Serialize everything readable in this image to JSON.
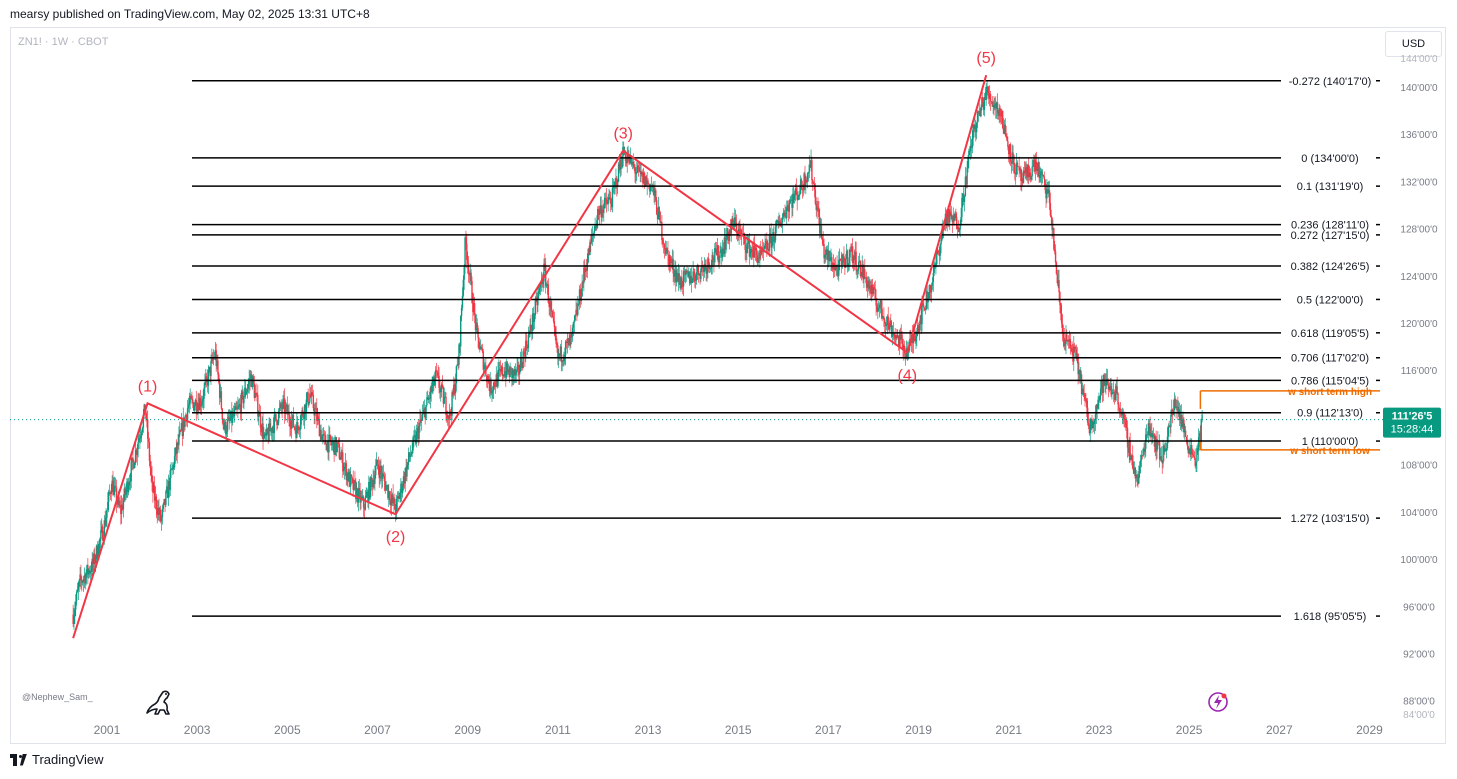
{
  "header": {
    "text": "mearsy published on TradingView.com, May 02, 2025 13:31 UTC+8"
  },
  "symbol": "ZN1! · 1W · CBOT",
  "currency_button": "USD",
  "watermark_user": "@Nephew_Sam_",
  "brand": "TradingView",
  "icons": {
    "logo": "tradingview-logo-icon",
    "mascot": "dino-icon",
    "replay": "lightning-icon"
  },
  "colors": {
    "wave": "#f23645",
    "fib": "#000000",
    "orange": "#ef6c00",
    "up": "#089981",
    "down": "#f23645",
    "price_badge": "#089981"
  },
  "chart_data": {
    "type": "candlestick",
    "y_axis_ticks": [
      "88'00'0",
      "92'00'0",
      "96'00'0",
      "100'00'0",
      "104'00'0",
      "108'00'0",
      "112'00'0",
      "116'00'0",
      "120'00'0",
      "124'00'0",
      "128'00'0",
      "132'00'0",
      "136'00'0",
      "140'00'0"
    ],
    "y_axis_ticks_cut": [
      "144'00'0",
      "84'00'0"
    ],
    "x_axis_ticks": [
      "2001",
      "2003",
      "2005",
      "2007",
      "2009",
      "2011",
      "2013",
      "2015",
      "2017",
      "2019",
      "2021",
      "2023",
      "2025",
      "2027",
      "2029"
    ],
    "ylim": [
      84.5,
      145
    ],
    "xlim": [
      1998.85,
      2029.3
    ],
    "fib_levels": [
      {
        "ratio": "-0.272",
        "label": "-0.272 (140'17'0)",
        "price": 140.53
      },
      {
        "ratio": "0",
        "label": "0 (134'00'0)",
        "price": 134.0
      },
      {
        "ratio": "0.1",
        "label": "0.1 (131'19'0)",
        "price": 131.6
      },
      {
        "ratio": "0.236",
        "label": "0.236 (128'11'0)",
        "price": 128.34
      },
      {
        "ratio": "0.272",
        "label": "0.272 (127'15'0)",
        "price": 127.47
      },
      {
        "ratio": "0.382",
        "label": "0.382 (124'26'5)",
        "price": 124.83
      },
      {
        "ratio": "0.5",
        "label": "0.5 (122'00'0)",
        "price": 122.0
      },
      {
        "ratio": "0.618",
        "label": "0.618 (119'05'5)",
        "price": 119.17
      },
      {
        "ratio": "0.706",
        "label": "0.706 (117'02'0)",
        "price": 117.06
      },
      {
        "ratio": "0.786",
        "label": "0.786 (115'04'5)",
        "price": 115.14
      },
      {
        "ratio": "0.9",
        "label": "0.9 (112'13'0)",
        "price": 112.4
      },
      {
        "ratio": "1",
        "label": "1 (110'00'0)",
        "price": 110.0
      },
      {
        "ratio": "1.272",
        "label": "1.272 (103'15'0)",
        "price": 103.47
      },
      {
        "ratio": "1.618",
        "label": "1.618 (95'05'5)",
        "price": 95.17
      }
    ],
    "wave_points": [
      {
        "label": "",
        "x": 2000.25,
        "y": 93.3
      },
      {
        "label": "(1)",
        "x": 2001.9,
        "y": 113.2
      },
      {
        "label": "(2)",
        "x": 2007.4,
        "y": 103.8
      },
      {
        "label": "(3)",
        "x": 2012.45,
        "y": 134.6
      },
      {
        "label": "(4)",
        "x": 2018.75,
        "y": 117.5
      },
      {
        "label": "(5)",
        "x": 2020.5,
        "y": 141.0
      }
    ],
    "annotations": [
      {
        "text": "w short term high",
        "x_start": 2025.25,
        "x_end": 2028.4,
        "price": 114.25
      },
      {
        "text": "w short term low",
        "x_start": 2025.25,
        "x_end": 2028.4,
        "price": 109.25
      }
    ],
    "last_price": {
      "value": "111'26'5",
      "countdown": "15:28:44",
      "price": 111.82
    },
    "price_path": [
      [
        2000.25,
        95.3
      ],
      [
        2000.4,
        98.0
      ],
      [
        2000.7,
        99.6
      ],
      [
        2000.95,
        103.0
      ],
      [
        2001.1,
        106.5
      ],
      [
        2001.3,
        104.0
      ],
      [
        2001.6,
        108.5
      ],
      [
        2001.85,
        112.7
      ],
      [
        2002.0,
        106.0
      ],
      [
        2002.2,
        103.2
      ],
      [
        2002.5,
        108.5
      ],
      [
        2002.8,
        113.0
      ],
      [
        2003.1,
        113.5
      ],
      [
        2003.4,
        117.5
      ],
      [
        2003.6,
        111.0
      ],
      [
        2003.9,
        112.5
      ],
      [
        2004.2,
        115.5
      ],
      [
        2004.5,
        110.0
      ],
      [
        2004.9,
        113.0
      ],
      [
        2005.2,
        111.0
      ],
      [
        2005.5,
        114.0
      ],
      [
        2005.8,
        110.0
      ],
      [
        2006.1,
        109.5
      ],
      [
        2006.4,
        106.5
      ],
      [
        2006.7,
        104.5
      ],
      [
        2007.0,
        108.0
      ],
      [
        2007.4,
        104.2
      ],
      [
        2007.7,
        108.5
      ],
      [
        2008.0,
        112.0
      ],
      [
        2008.3,
        115.5
      ],
      [
        2008.6,
        112.0
      ],
      [
        2008.8,
        117.0
      ],
      [
        2008.95,
        127.0
      ],
      [
        2009.2,
        119.0
      ],
      [
        2009.5,
        114.5
      ],
      [
        2009.8,
        116.0
      ],
      [
        2010.1,
        115.5
      ],
      [
        2010.4,
        119.5
      ],
      [
        2010.7,
        124.5
      ],
      [
        2011.0,
        117.0
      ],
      [
        2011.3,
        118.5
      ],
      [
        2011.6,
        124.5
      ],
      [
        2011.9,
        129.5
      ],
      [
        2012.2,
        130.5
      ],
      [
        2012.45,
        134.5
      ],
      [
        2012.8,
        132.5
      ],
      [
        2013.1,
        131.5
      ],
      [
        2013.4,
        126.0
      ],
      [
        2013.7,
        123.5
      ],
      [
        2014.0,
        124.0
      ],
      [
        2014.3,
        125.0
      ],
      [
        2014.6,
        126.0
      ],
      [
        2014.9,
        128.5
      ],
      [
        2015.2,
        126.5
      ],
      [
        2015.5,
        125.5
      ],
      [
        2015.8,
        127.5
      ],
      [
        2016.1,
        130.0
      ],
      [
        2016.4,
        131.5
      ],
      [
        2016.6,
        133.5
      ],
      [
        2016.9,
        126.0
      ],
      [
        2017.2,
        124.5
      ],
      [
        2017.5,
        126.0
      ],
      [
        2017.8,
        124.0
      ],
      [
        2018.1,
        121.5
      ],
      [
        2018.4,
        119.5
      ],
      [
        2018.75,
        117.5
      ],
      [
        2019.0,
        120.0
      ],
      [
        2019.3,
        123.5
      ],
      [
        2019.6,
        129.0
      ],
      [
        2019.9,
        128.5
      ],
      [
        2020.2,
        136.0
      ],
      [
        2020.5,
        139.5
      ],
      [
        2020.8,
        138.0
      ],
      [
        2021.1,
        133.5
      ],
      [
        2021.3,
        132.0
      ],
      [
        2021.6,
        133.5
      ],
      [
        2021.9,
        130.5
      ],
      [
        2022.2,
        119.0
      ],
      [
        2022.5,
        117.0
      ],
      [
        2022.8,
        111.0
      ],
      [
        2023.1,
        115.0
      ],
      [
        2023.4,
        114.0
      ],
      [
        2023.7,
        109.0
      ],
      [
        2023.85,
        106.5
      ],
      [
        2024.1,
        111.5
      ],
      [
        2024.4,
        108.5
      ],
      [
        2024.7,
        113.5
      ],
      [
        2024.95,
        110.0
      ],
      [
        2025.15,
        108.5
      ],
      [
        2025.3,
        111.8
      ]
    ]
  }
}
